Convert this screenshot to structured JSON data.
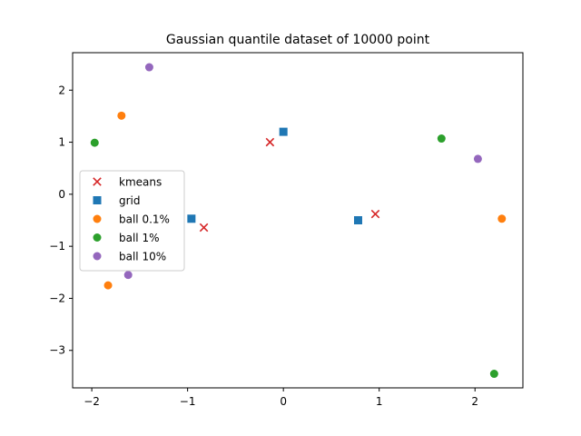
{
  "chart_data": {
    "type": "scatter",
    "title": "Gaussian quantile dataset of 10000 point",
    "xlabel": "",
    "ylabel": "",
    "xlim": [
      -2.2,
      2.5
    ],
    "ylim": [
      -3.72,
      2.72
    ],
    "xticks": [
      -2,
      -1,
      0,
      1,
      2
    ],
    "yticks": [
      -3,
      -2,
      -1,
      0,
      1,
      2
    ],
    "xtick_labels": [
      "−2",
      "−1",
      "0",
      "1",
      "2"
    ],
    "ytick_labels": [
      "−3",
      "−2",
      "−1",
      "0",
      "1",
      "2"
    ],
    "grid": false,
    "legend_position": "center-left",
    "series": [
      {
        "name": "kmeans",
        "marker": "x",
        "color": "#d62728",
        "points": [
          [
            -0.14,
            1.0
          ],
          [
            -0.83,
            -0.64
          ],
          [
            0.96,
            -0.38
          ]
        ]
      },
      {
        "name": "grid",
        "marker": "square",
        "color": "#1f77b4",
        "points": [
          [
            0.0,
            1.2
          ],
          [
            -0.96,
            -0.47
          ],
          [
            0.78,
            -0.5
          ]
        ]
      },
      {
        "name": "ball 0.1%",
        "marker": "circle",
        "color": "#ff7f0e",
        "points": [
          [
            -1.69,
            1.51
          ],
          [
            -1.83,
            -1.75
          ],
          [
            2.28,
            -0.47
          ]
        ]
      },
      {
        "name": "ball 1%",
        "marker": "circle",
        "color": "#2ca02c",
        "points": [
          [
            -1.97,
            0.99
          ],
          [
            1.65,
            1.07
          ],
          [
            2.2,
            -3.45
          ]
        ]
      },
      {
        "name": "ball 10%",
        "marker": "circle",
        "color": "#9467bd",
        "points": [
          [
            -1.4,
            2.44
          ],
          [
            -1.62,
            -1.55
          ],
          [
            2.03,
            0.68
          ]
        ]
      }
    ]
  }
}
